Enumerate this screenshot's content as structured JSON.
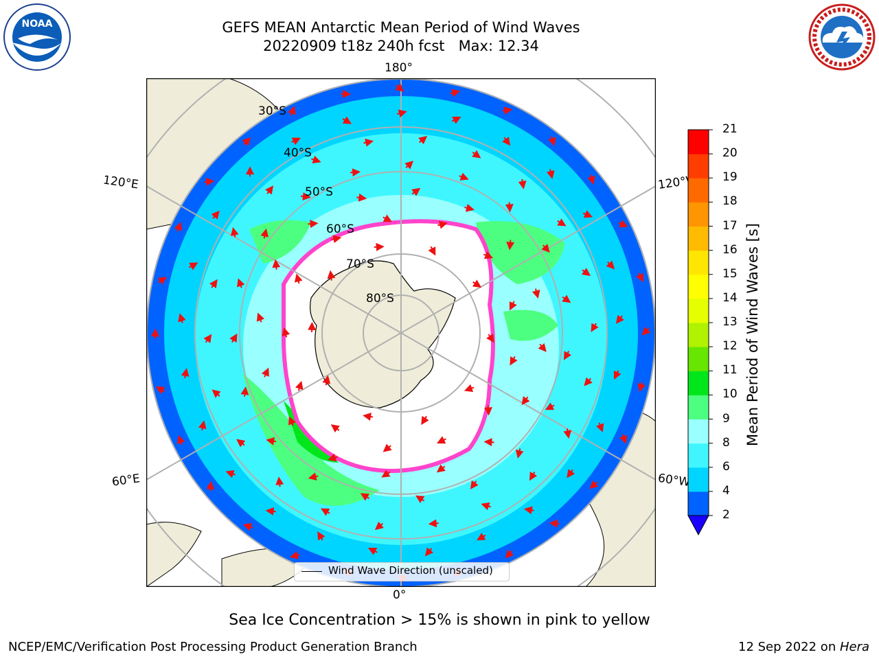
{
  "header": {
    "title_line1": "GEFS MEAN Antarctic Mean Period of Wind Waves",
    "title_line2": "20220909 t18z 240h fcst   Max: 12.34"
  },
  "logos": {
    "left": "noaa-logo",
    "right": "national-weather-service-logo",
    "left_text": "NOAA",
    "right_text": "NATIONAL WEATHER SERVICE"
  },
  "map": {
    "projection": "south-polar-stereographic",
    "longitude_labels": {
      "top": "180°",
      "bottom": "0°",
      "upper_left": "120°E",
      "lower_left": "60°E",
      "upper_right": "120°W",
      "lower_right": "60°W"
    },
    "latitude_labels": [
      "30°S",
      "40°S",
      "50°S",
      "60°S",
      "70°S",
      "80°S"
    ],
    "legend_label": "Wind Wave Direction (unscaled)",
    "colors": {
      "land": "#efedd9",
      "sea_ice": "#ff44cc",
      "arrow": "#ee1111"
    }
  },
  "colorbar": {
    "label": "Mean Period of Wind Waves [s]",
    "ticks": [
      "2",
      "4",
      "6",
      "8",
      "9",
      "10",
      "11",
      "12",
      "13",
      "14",
      "15",
      "16",
      "17",
      "18",
      "19",
      "20",
      "21"
    ],
    "colors": [
      "#0063ff",
      "#00d5ff",
      "#3ff6ff",
      "#99ffff",
      "#4dff80",
      "#00e61a",
      "#66e600",
      "#b0f200",
      "#e6ff00",
      "#ffff00",
      "#ffe600",
      "#ffbb00",
      "#ff9500",
      "#ff6a00",
      "#ff3d00",
      "#ff0000"
    ],
    "under_color": "#1a00ff"
  },
  "footer": {
    "sea_ice_note": "Sea Ice Concentration > 15% is shown in pink to yellow",
    "credit_left": "NCEP/EMC/Verification Post Processing Product Generation Branch",
    "credit_right_prefix": "12 Sep 2022 on ",
    "credit_right_host": "Hera"
  }
}
